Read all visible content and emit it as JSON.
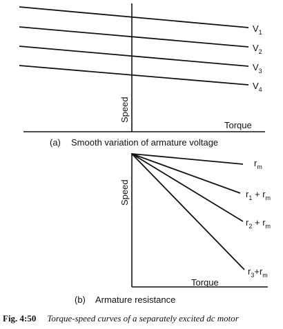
{
  "panel_a": {
    "axis_y_label": "Speed",
    "axis_x_label": "Torque",
    "caption_letter": "(a)",
    "caption_text": "Smooth variation of armature voltage",
    "lines": [
      {
        "label": "V",
        "sub": "1"
      },
      {
        "label": "V",
        "sub": "2"
      },
      {
        "label": "V",
        "sub": "3"
      },
      {
        "label": "V",
        "sub": "4"
      }
    ]
  },
  "panel_b": {
    "axis_y_label": "Speed",
    "axis_x_label": "Torque",
    "caption_letter": "(b)",
    "caption_text": "Armature resistance",
    "lines": [
      {
        "pre": "r",
        "pre_sub": "m",
        "plus": "",
        "post": "",
        "post_sub": ""
      },
      {
        "pre": "r",
        "pre_sub": "1",
        "plus": " + ",
        "post": "r",
        "post_sub": "m"
      },
      {
        "pre": "r",
        "pre_sub": "2",
        "plus": " + ",
        "post": "r",
        "post_sub": "m"
      },
      {
        "pre": "r",
        "pre_sub": "3",
        "plus": "+",
        "post": "r",
        "post_sub": "m"
      }
    ]
  },
  "figure_caption": {
    "number": "Fig. 4:50",
    "text": "Torque-speed curves of a separately excited dc motor"
  }
}
